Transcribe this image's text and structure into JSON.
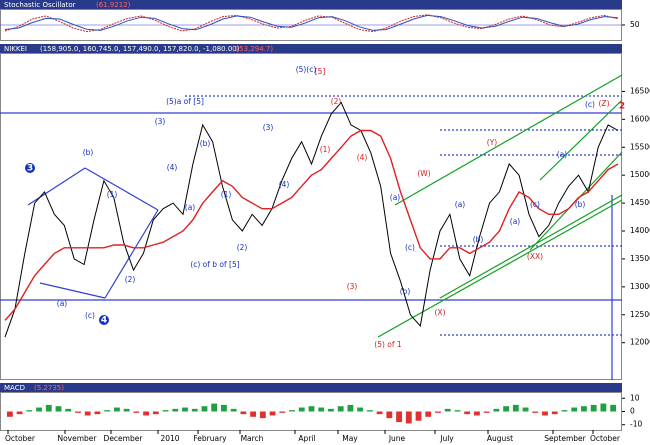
{
  "chart_data": [
    {
      "type": "line",
      "title": "Stochastic Oscillator",
      "subtitle": "(61.9212)",
      "ylim": [
        0,
        100
      ],
      "yticks": [
        50
      ],
      "series": [
        {
          "name": "%K",
          "color": "#d02020",
          "values": [
            30,
            45,
            70,
            80,
            62,
            40,
            28,
            35,
            55,
            72,
            80,
            66,
            45,
            30,
            38,
            60,
            78,
            82,
            70,
            52,
            40,
            45,
            65,
            80,
            76,
            55,
            35,
            28,
            40,
            62,
            78,
            84,
            74,
            56,
            42,
            38,
            52,
            70,
            80,
            68,
            50,
            44,
            58,
            74,
            82,
            70
          ]
        },
        {
          "name": "%D",
          "color": "#3050c0",
          "values": [
            35,
            40,
            58,
            72,
            70,
            52,
            36,
            32,
            46,
            64,
            76,
            72,
            54,
            38,
            34,
            50,
            70,
            80,
            76,
            60,
            46,
            42,
            56,
            74,
            78,
            64,
            44,
            32,
            35,
            52,
            70,
            82,
            78,
            64,
            48,
            40,
            46,
            62,
            76,
            72,
            58,
            46,
            52,
            68,
            78,
            74
          ]
        }
      ]
    },
    {
      "type": "line",
      "label": "NIKKEI",
      "title": "(158,905.0, 160,745.0, 157,490.0, 157,820.0, -1,080.00)",
      "subtitle": "(153,294.7)",
      "ylim": [
        11350,
        17170
      ],
      "yticks": [
        16500,
        16000,
        15500,
        15000,
        14500,
        14000,
        13500,
        13000,
        12500,
        12000
      ],
      "x_labels": [
        "October",
        "November",
        "December",
        "2010",
        "February",
        "March",
        "April",
        "May",
        "June",
        "July",
        "August",
        "September",
        "October"
      ],
      "series": [
        {
          "name": "Price",
          "color": "#000000",
          "values": [
            12100,
            12600,
            13600,
            14500,
            14700,
            14300,
            14100,
            13500,
            13400,
            14200,
            14900,
            14600,
            13800,
            13300,
            13600,
            14200,
            14400,
            14500,
            14300,
            15200,
            15900,
            15600,
            14800,
            14200,
            14000,
            14300,
            14100,
            14400,
            14900,
            15300,
            15600,
            15200,
            15700,
            16100,
            16300,
            15900,
            15800,
            15400,
            14800,
            13600,
            13100,
            12500,
            12300,
            13300,
            14000,
            14300,
            13500,
            13200,
            13900,
            14500,
            14700,
            15200,
            15000,
            14300,
            13900,
            14100,
            14500,
            14800,
            15000,
            14700,
            15500,
            15900,
            15800
          ]
        },
        {
          "name": "Moving Average",
          "color": "#e02020",
          "values": [
            12400,
            12600,
            12900,
            13200,
            13400,
            13600,
            13700,
            13700,
            13700,
            13700,
            13700,
            13750,
            13750,
            13700,
            13700,
            13750,
            13800,
            13900,
            14000,
            14200,
            14500,
            14700,
            14900,
            14800,
            14600,
            14500,
            14400,
            14400,
            14500,
            14600,
            14800,
            15000,
            15100,
            15300,
            15500,
            15700,
            15800,
            15800,
            15700,
            15300,
            14700,
            14200,
            13700,
            13500,
            13500,
            13700,
            13700,
            13600,
            13700,
            13800,
            14000,
            14400,
            14700,
            14600,
            14400,
            14300,
            14300,
            14400,
            14600,
            14700,
            14900,
            15100,
            15200
          ]
        }
      ],
      "annotations": [
        {
          "text": "3",
          "color": "#1030c0"
        },
        {
          "text": "(b)",
          "color": "#1030c0"
        },
        {
          "text": "(1)",
          "color": "#1030c0"
        },
        {
          "text": "(a)",
          "color": "#1030c0"
        },
        {
          "text": "(c)",
          "color": "#1030c0"
        },
        {
          "text": "4",
          "color": "#1030c0"
        },
        {
          "text": "(2)",
          "color": "#1030c0"
        },
        {
          "text": "(5)a of [5]",
          "color": "#1030c0"
        },
        {
          "text": "(3)",
          "color": "#1030c0"
        },
        {
          "text": "(4)",
          "color": "#1030c0"
        },
        {
          "text": "(b)",
          "color": "#1030c0"
        },
        {
          "text": "(a)",
          "color": "#1030c0"
        },
        {
          "text": "(1)",
          "color": "#1030c0"
        },
        {
          "text": "(2)",
          "color": "#1030c0"
        },
        {
          "text": "(c) of b of [5]",
          "color": "#1030c0"
        },
        {
          "text": "(3)",
          "color": "#1030c0"
        },
        {
          "text": "(4)",
          "color": "#1030c0"
        },
        {
          "text": "(5)(c)",
          "color": "#1030c0"
        },
        {
          "text": "[5]",
          "color": "#d02020"
        },
        {
          "text": "(2)",
          "color": "#d02020"
        },
        {
          "text": "(1)",
          "color": "#d02020"
        },
        {
          "text": "(4)",
          "color": "#d02020"
        },
        {
          "text": "(3)",
          "color": "#d02020"
        },
        {
          "text": "(5) of 1",
          "color": "#d02020"
        },
        {
          "text": "(W)",
          "color": "#d02020"
        },
        {
          "text": "(a)",
          "color": "#1030c0"
        },
        {
          "text": "(b)",
          "color": "#1030c0"
        },
        {
          "text": "(c)",
          "color": "#1030c0"
        },
        {
          "text": "(X)",
          "color": "#d02020"
        },
        {
          "text": "(a)",
          "color": "#1030c0"
        },
        {
          "text": "(b)",
          "color": "#1030c0"
        },
        {
          "text": "(Y)",
          "color": "#d02020"
        },
        {
          "text": "(a)",
          "color": "#1030c0"
        },
        {
          "text": "(c)",
          "color": "#1030c0"
        },
        {
          "text": "(XX)",
          "color": "#d02020"
        },
        {
          "text": "(a)",
          "color": "#1030c0"
        },
        {
          "text": "(b)",
          "color": "#1030c0"
        },
        {
          "text": "(c)",
          "color": "#1030c0"
        },
        {
          "text": "(Z)",
          "color": "#d02020"
        },
        {
          "text": "2",
          "color": "#d02020"
        }
      ]
    },
    {
      "type": "bar",
      "title": "MACD",
      "subtitle": "(5.2735)",
      "ylim": [
        -14,
        14
      ],
      "yticks": [
        10,
        0,
        -10
      ],
      "colors": {
        "up": "#20a040",
        "down": "#e03030"
      },
      "values": [
        -4,
        -2,
        1,
        3,
        5,
        4,
        2,
        -1,
        -3,
        -2,
        1,
        3,
        2,
        -1,
        -3,
        -2,
        1,
        2,
        3,
        2,
        4,
        6,
        5,
        2,
        -2,
        -4,
        -5,
        -3,
        -1,
        1,
        3,
        4,
        3,
        2,
        4,
        5,
        3,
        1,
        -2,
        -5,
        -8,
        -9,
        -7,
        -4,
        -1,
        2,
        1,
        -2,
        -3,
        -1,
        2,
        4,
        5,
        3,
        -1,
        -3,
        -2,
        1,
        3,
        4,
        5,
        6,
        5
      ]
    }
  ]
}
